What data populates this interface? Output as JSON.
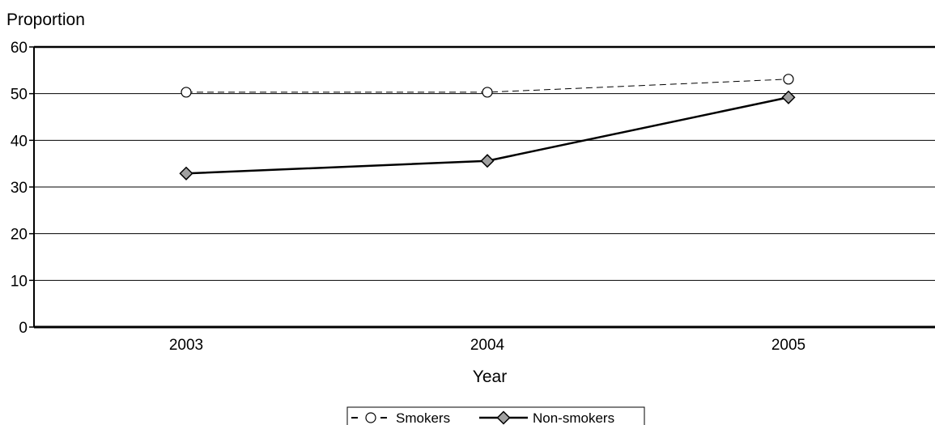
{
  "chart_data": {
    "type": "line",
    "title": "",
    "xlabel": "Year",
    "ylabel": "Proportion",
    "categories": [
      "2003",
      "2004",
      "2005"
    ],
    "ylim": [
      0,
      60
    ],
    "yticks": [
      0,
      10,
      20,
      30,
      40,
      50,
      60
    ],
    "grid": true,
    "legend_position": "bottom",
    "series": [
      {
        "name": "Smokers",
        "values": [
          50.3,
          50.3,
          53.1
        ],
        "line_style": "dashed",
        "marker": "circle",
        "color": "#000000",
        "marker_fill": "#ffffff"
      },
      {
        "name": "Non-smokers",
        "values": [
          32.9,
          35.6,
          49.2
        ],
        "line_style": "solid",
        "marker": "diamond",
        "color": "#000000",
        "marker_fill": "#a0a0a0"
      }
    ]
  }
}
